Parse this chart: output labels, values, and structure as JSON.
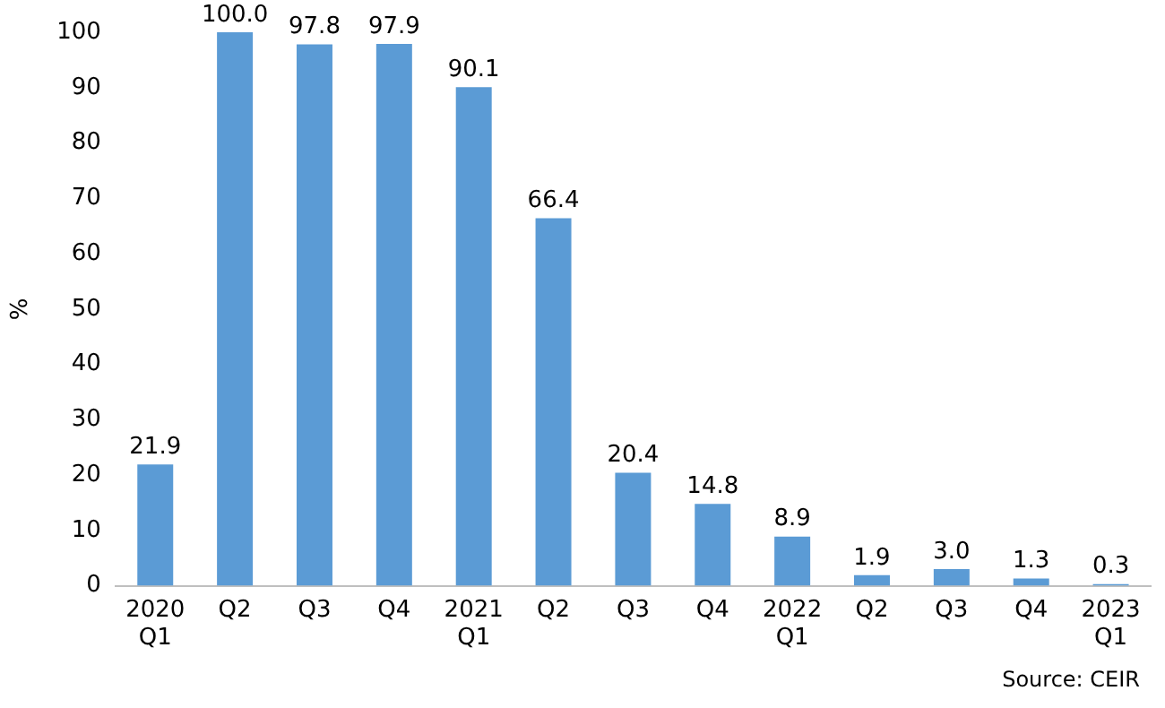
{
  "chart_data": {
    "type": "bar",
    "ylabel": "%",
    "categories": [
      "2020\nQ1",
      "Q2",
      "Q3",
      "Q4",
      "2021\nQ1",
      "Q2",
      "Q3",
      "Q4",
      "2022\nQ1",
      "Q2",
      "Q3",
      "Q4",
      "2023\nQ1"
    ],
    "values": [
      21.9,
      100.0,
      97.8,
      97.9,
      90.1,
      66.4,
      20.4,
      14.8,
      8.9,
      1.9,
      3.0,
      1.3,
      0.3
    ],
    "value_labels": [
      "21.9",
      "100.0",
      "97.8",
      "97.9",
      "90.1",
      "66.4",
      "20.4",
      "14.8",
      "8.9",
      "1.9",
      "3.0",
      "1.3",
      "0.3"
    ],
    "color": "#5b9bd5",
    "ylim": [
      0,
      100
    ],
    "yticks": [
      0,
      10,
      20,
      30,
      40,
      50,
      60,
      70,
      80,
      90,
      100
    ],
    "grid": false,
    "legend": false,
    "annotations": [
      "Source: CEIR"
    ]
  }
}
